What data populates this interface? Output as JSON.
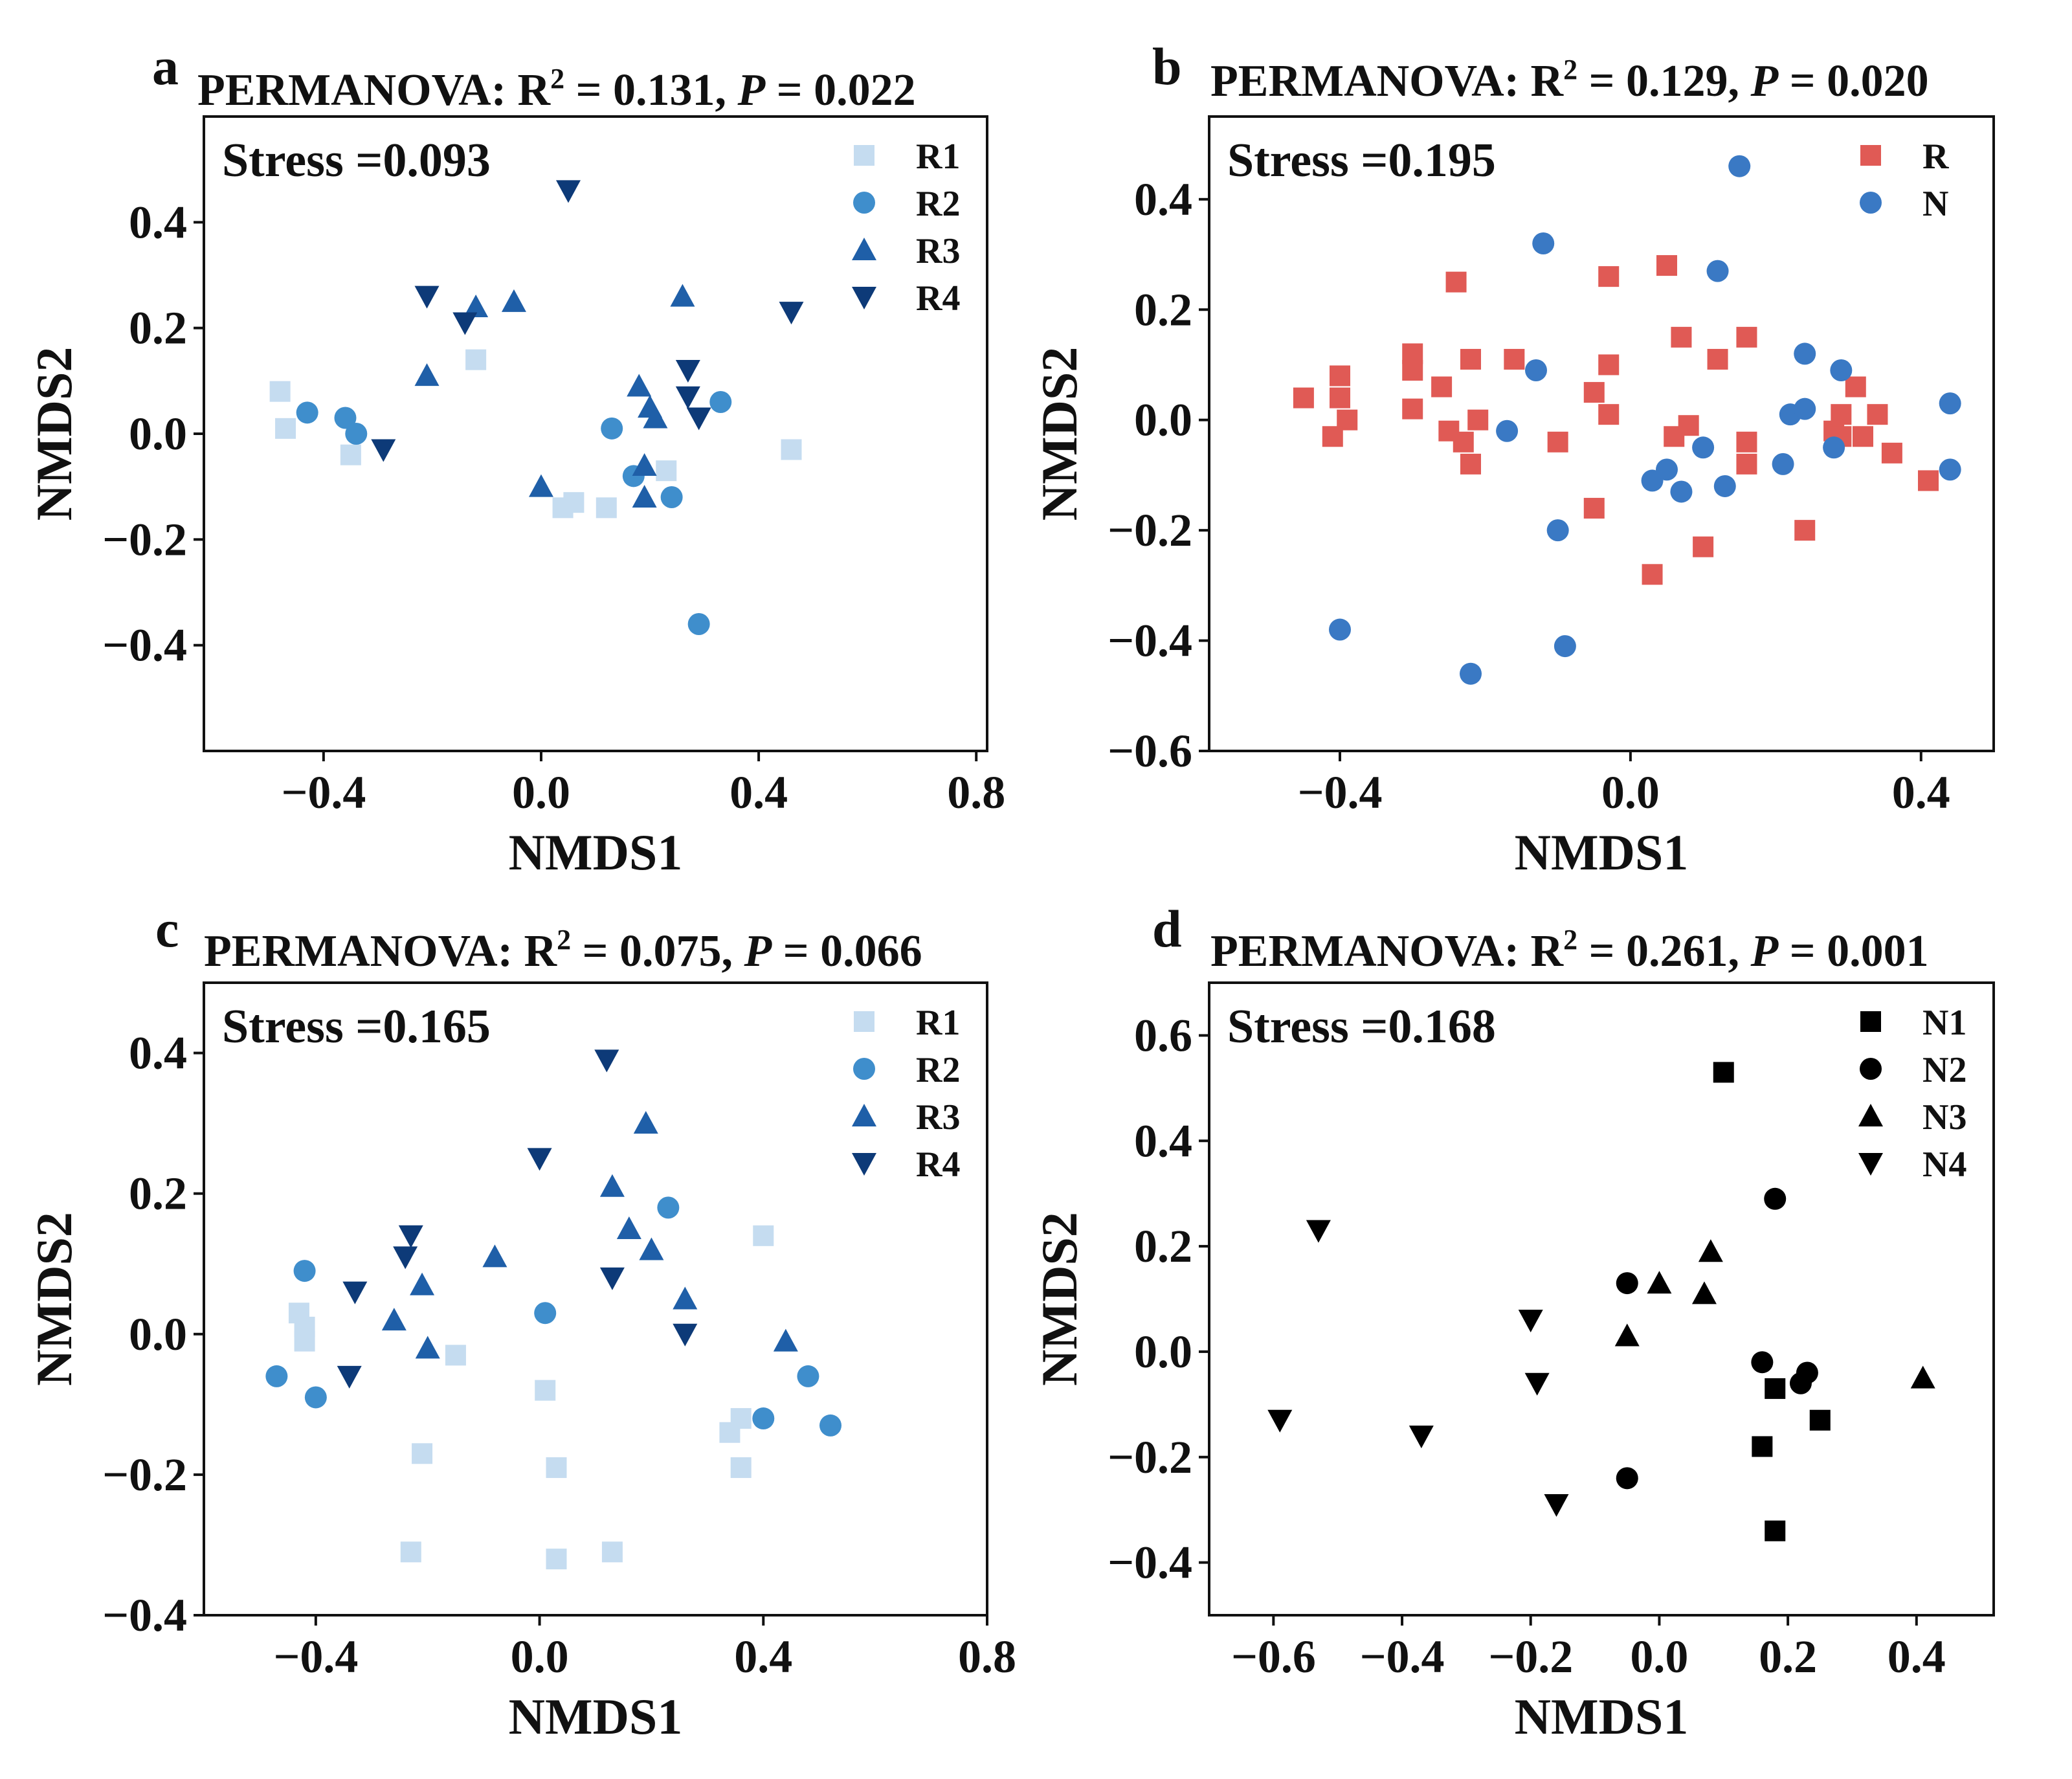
{
  "colors": {
    "R1": "#c5dcf0",
    "R2": "#3f8ecc",
    "R3": "#1f5fa8",
    "R4": "#0d3a78",
    "R": "#e05a55",
    "N": "#3a79c4"
  },
  "chart_data": [
    {
      "panel": "a",
      "type": "scatter",
      "permanova_prefix": "PERMANOVA: R",
      "r2_super": "2",
      "r2_text": " = 0.131, ",
      "p_label": "P",
      "p_text": " = 0.022",
      "stress": "Stress =0.093",
      "xlabel": "NMDS1",
      "ylabel": "NMDS2",
      "xlim": [
        -0.62,
        0.82
      ],
      "ylim": [
        -0.6,
        0.6
      ],
      "xticks": [
        -0.4,
        0.0,
        0.4,
        0.8
      ],
      "xtick_labels": [
        "−0.4",
        "0.0",
        "0.4",
        "0.8"
      ],
      "yticks": [
        -0.4,
        -0.2,
        0.0,
        0.2,
        0.4
      ],
      "ytick_labels": [
        "−0.4",
        "−0.2",
        "0.0",
        "0.2",
        "0.4"
      ],
      "series": [
        {
          "name": "R1",
          "marker": "square",
          "points": [
            [
              -0.48,
              0.08
            ],
            [
              -0.47,
              0.01
            ],
            [
              -0.35,
              -0.04
            ],
            [
              -0.12,
              0.14
            ],
            [
              0.04,
              -0.14
            ],
            [
              0.06,
              -0.13
            ],
            [
              0.12,
              -0.14
            ],
            [
              0.23,
              -0.07
            ],
            [
              0.46,
              -0.03
            ]
          ]
        },
        {
          "name": "R2",
          "marker": "circle",
          "points": [
            [
              -0.43,
              0.04
            ],
            [
              -0.36,
              0.03
            ],
            [
              -0.34,
              0.0
            ],
            [
              0.13,
              0.01
            ],
            [
              0.17,
              -0.08
            ],
            [
              0.24,
              -0.12
            ],
            [
              0.33,
              0.06
            ],
            [
              0.29,
              -0.36
            ]
          ]
        },
        {
          "name": "R3",
          "marker": "triangle-up",
          "points": [
            [
              -0.21,
              0.11
            ],
            [
              -0.12,
              0.24
            ],
            [
              -0.05,
              0.25
            ],
            [
              0.0,
              -0.1
            ],
            [
              0.18,
              0.09
            ],
            [
              0.2,
              0.05
            ],
            [
              0.21,
              0.03
            ],
            [
              0.19,
              -0.06
            ],
            [
              0.19,
              -0.12
            ],
            [
              0.26,
              0.26
            ]
          ]
        },
        {
          "name": "R4",
          "marker": "triangle-down",
          "points": [
            [
              -0.29,
              -0.03
            ],
            [
              -0.21,
              0.26
            ],
            [
              -0.14,
              0.21
            ],
            [
              0.05,
              0.46
            ],
            [
              0.27,
              0.12
            ],
            [
              0.27,
              0.07
            ],
            [
              0.29,
              0.03
            ],
            [
              0.46,
              0.23
            ]
          ]
        }
      ],
      "legend": [
        "R1",
        "R2",
        "R3",
        "R4"
      ]
    },
    {
      "panel": "b",
      "type": "scatter",
      "permanova_prefix": "PERMANOVA: R",
      "r2_super": "2",
      "r2_text": " = 0.129, ",
      "p_label": "P",
      "p_text": " = 0.020",
      "stress": "Stress =0.195",
      "xlabel": "NMDS1",
      "ylabel": "NMDS2",
      "xlim": [
        -0.58,
        0.5
      ],
      "ylim": [
        -0.6,
        0.55
      ],
      "xticks": [
        -0.4,
        0.0,
        0.4
      ],
      "xtick_labels": [
        "−0.4",
        "0.0",
        "0.4"
      ],
      "yticks": [
        -0.6,
        -0.4,
        -0.2,
        0.0,
        0.2,
        0.4
      ],
      "ytick_labels": [
        "−0.6",
        "−0.4",
        "−0.2",
        "0.0",
        "0.2",
        "0.4"
      ],
      "series": [
        {
          "name": "R",
          "marker": "square",
          "points": [
            [
              -0.45,
              0.04
            ],
            [
              -0.4,
              0.08
            ],
            [
              -0.4,
              0.04
            ],
            [
              -0.39,
              0.0
            ],
            [
              -0.41,
              -0.03
            ],
            [
              -0.3,
              0.12
            ],
            [
              -0.3,
              0.09
            ],
            [
              -0.3,
              0.02
            ],
            [
              -0.26,
              0.06
            ],
            [
              -0.25,
              -0.02
            ],
            [
              -0.24,
              0.25
            ],
            [
              -0.23,
              -0.04
            ],
            [
              -0.22,
              0.11
            ],
            [
              -0.22,
              -0.08
            ],
            [
              -0.21,
              0.0
            ],
            [
              -0.16,
              0.11
            ],
            [
              -0.1,
              -0.04
            ],
            [
              -0.05,
              0.05
            ],
            [
              -0.05,
              -0.16
            ],
            [
              -0.03,
              0.1
            ],
            [
              -0.03,
              0.26
            ],
            [
              -0.03,
              0.01
            ],
            [
              0.03,
              -0.28
            ],
            [
              0.05,
              0.28
            ],
            [
              0.06,
              -0.03
            ],
            [
              0.07,
              0.15
            ],
            [
              0.08,
              -0.01
            ],
            [
              0.1,
              -0.23
            ],
            [
              0.12,
              0.11
            ],
            [
              0.16,
              0.15
            ],
            [
              0.16,
              -0.04
            ],
            [
              0.16,
              -0.08
            ],
            [
              0.24,
              -0.2
            ],
            [
              0.28,
              -0.02
            ],
            [
              0.29,
              0.01
            ],
            [
              0.29,
              -0.03
            ],
            [
              0.31,
              0.06
            ],
            [
              0.32,
              -0.03
            ],
            [
              0.34,
              0.01
            ],
            [
              0.36,
              -0.06
            ],
            [
              0.41,
              -0.11
            ]
          ]
        },
        {
          "name": "N",
          "marker": "circle",
          "points": [
            [
              -0.4,
              -0.38
            ],
            [
              -0.22,
              -0.46
            ],
            [
              -0.17,
              -0.02
            ],
            [
              -0.13,
              0.09
            ],
            [
              -0.12,
              0.32
            ],
            [
              -0.1,
              -0.2
            ],
            [
              -0.09,
              -0.41
            ],
            [
              0.03,
              -0.11
            ],
            [
              0.05,
              -0.09
            ],
            [
              0.07,
              -0.13
            ],
            [
              0.1,
              -0.05
            ],
            [
              0.12,
              0.27
            ],
            [
              0.13,
              -0.12
            ],
            [
              0.15,
              0.46
            ],
            [
              0.21,
              -0.08
            ],
            [
              0.22,
              0.01
            ],
            [
              0.24,
              0.02
            ],
            [
              0.24,
              0.12
            ],
            [
              0.28,
              -0.05
            ],
            [
              0.29,
              0.09
            ],
            [
              0.44,
              0.03
            ],
            [
              0.44,
              -0.09
            ]
          ]
        }
      ],
      "legend": [
        "R",
        "N"
      ]
    },
    {
      "panel": "c",
      "type": "scatter",
      "permanova_prefix": "PERMANOVA: R",
      "r2_super": "2",
      "r2_text": " = 0.075, ",
      "p_label": "P",
      "p_text": " = 0.066",
      "stress": "Stress =0.165",
      "xlabel": "NMDS1",
      "ylabel": "NMDS2",
      "xlim": [
        -0.6,
        0.8
      ],
      "ylim": [
        -0.4,
        0.5
      ],
      "xticks": [
        -0.4,
        0.0,
        0.4,
        0.8
      ],
      "xtick_labels": [
        "−0.4",
        "0.0",
        "0.4",
        "0.8"
      ],
      "yticks": [
        -0.4,
        -0.2,
        0.0,
        0.2,
        0.4
      ],
      "ytick_labels": [
        "−0.4",
        "−0.2",
        "0.0",
        "0.2",
        "0.4"
      ],
      "series": [
        {
          "name": "R1",
          "marker": "square",
          "points": [
            [
              -0.43,
              0.03
            ],
            [
              -0.42,
              0.01
            ],
            [
              -0.42,
              -0.01
            ],
            [
              -0.21,
              -0.17
            ],
            [
              -0.23,
              -0.31
            ],
            [
              -0.15,
              -0.03
            ],
            [
              0.01,
              -0.08
            ],
            [
              0.03,
              -0.19
            ],
            [
              0.03,
              -0.32
            ],
            [
              0.13,
              -0.31
            ],
            [
              0.34,
              -0.14
            ],
            [
              0.36,
              -0.12
            ],
            [
              0.36,
              -0.19
            ],
            [
              0.4,
              0.14
            ]
          ]
        },
        {
          "name": "R2",
          "marker": "circle",
          "points": [
            [
              -0.47,
              -0.06
            ],
            [
              -0.42,
              0.09
            ],
            [
              -0.4,
              -0.09
            ],
            [
              0.01,
              0.03
            ],
            [
              0.23,
              0.18
            ],
            [
              0.4,
              -0.12
            ],
            [
              0.48,
              -0.06
            ],
            [
              0.52,
              -0.13
            ]
          ]
        },
        {
          "name": "R3",
          "marker": "triangle-up",
          "points": [
            [
              -0.26,
              0.02
            ],
            [
              -0.21,
              0.07
            ],
            [
              -0.2,
              -0.02
            ],
            [
              -0.08,
              0.11
            ],
            [
              0.13,
              0.21
            ],
            [
              0.16,
              0.15
            ],
            [
              0.19,
              0.3
            ],
            [
              0.2,
              0.12
            ],
            [
              0.26,
              0.05
            ],
            [
              0.44,
              -0.01
            ]
          ]
        },
        {
          "name": "R4",
          "marker": "triangle-down",
          "points": [
            [
              -0.33,
              0.06
            ],
            [
              -0.34,
              -0.06
            ],
            [
              -0.23,
              0.14
            ],
            [
              -0.24,
              0.11
            ],
            [
              0.0,
              0.25
            ],
            [
              0.12,
              0.39
            ],
            [
              0.13,
              0.08
            ],
            [
              0.26,
              0.0
            ]
          ]
        }
      ],
      "legend": [
        "R1",
        "R2",
        "R3",
        "R4"
      ]
    },
    {
      "panel": "d",
      "type": "scatter",
      "permanova_prefix": "PERMANOVA: R",
      "r2_super": "2",
      "r2_text": " = 0.261, ",
      "p_label": "P",
      "p_text": " = 0.001",
      "stress": "Stress =0.168",
      "xlabel": "NMDS1",
      "ylabel": "NMDS2",
      "xlim": [
        -0.7,
        0.52
      ],
      "ylim": [
        -0.5,
        0.7
      ],
      "xticks": [
        -0.6,
        -0.4,
        -0.2,
        0.0,
        0.2,
        0.4
      ],
      "xtick_labels": [
        "−0.6",
        "−0.4",
        "−0.2",
        "0.0",
        "0.2",
        "0.4"
      ],
      "yticks": [
        -0.4,
        -0.2,
        0.0,
        0.2,
        0.4,
        0.6
      ],
      "ytick_labels": [
        "−0.4",
        "−0.2",
        "0.0",
        "0.2",
        "0.4",
        "0.6"
      ],
      "series": [
        {
          "name": "N1",
          "marker": "square",
          "points": [
            [
              0.1,
              0.53
            ],
            [
              0.16,
              -0.18
            ],
            [
              0.18,
              -0.34
            ],
            [
              0.18,
              -0.07
            ],
            [
              0.25,
              -0.13
            ]
          ]
        },
        {
          "name": "N2",
          "marker": "circle",
          "points": [
            [
              -0.05,
              0.13
            ],
            [
              -0.05,
              -0.24
            ],
            [
              0.16,
              -0.02
            ],
            [
              0.18,
              0.29
            ],
            [
              0.22,
              -0.06
            ],
            [
              0.23,
              -0.04
            ]
          ]
        },
        {
          "name": "N3",
          "marker": "triangle-up",
          "points": [
            [
              -0.05,
              0.03
            ],
            [
              0.0,
              0.13
            ],
            [
              0.07,
              0.11
            ],
            [
              0.08,
              0.19
            ],
            [
              0.41,
              -0.05
            ]
          ]
        },
        {
          "name": "N4",
          "marker": "triangle-down",
          "points": [
            [
              -0.59,
              -0.13
            ],
            [
              -0.53,
              0.23
            ],
            [
              -0.37,
              -0.16
            ],
            [
              -0.2,
              0.06
            ],
            [
              -0.19,
              -0.06
            ],
            [
              -0.16,
              -0.29
            ]
          ]
        }
      ],
      "legend": [
        "N1",
        "N2",
        "N3",
        "N4"
      ]
    }
  ]
}
